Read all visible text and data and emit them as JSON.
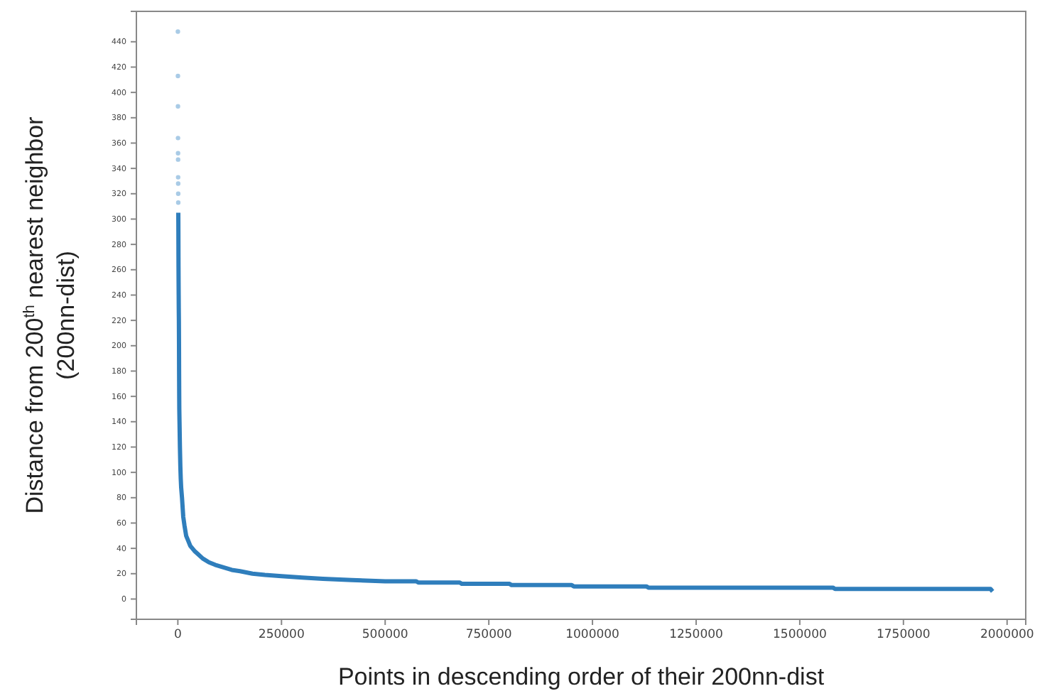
{
  "chart_data": {
    "type": "scatter",
    "xlabel": "Points in descending order of their 200nn-dist",
    "ylabel": "Distance from 200$^{th}$ nearest neighbor (200nn-dist)",
    "xlim": [
      -100000,
      2045000
    ],
    "ylim": [
      -16,
      464
    ],
    "xticks": [
      0,
      250000,
      500000,
      750000,
      1000000,
      1250000,
      1500000,
      1750000,
      2000000
    ],
    "yticks": [
      0,
      20,
      40,
      60,
      80,
      100,
      120,
      140,
      160,
      180,
      200,
      220,
      240,
      260,
      280,
      300,
      320,
      340,
      360,
      380,
      400,
      420,
      440
    ],
    "grid": false,
    "marker": "circle",
    "series": [
      {
        "color": "#a9cbe6",
        "x": [
          100,
          200,
          300,
          400,
          500,
          600,
          700,
          800,
          900,
          1000
        ],
        "values": [
          448,
          413,
          389,
          364,
          352,
          347,
          333,
          328,
          320,
          313
        ]
      },
      {
        "type": "line",
        "color": "#2f7ebc",
        "marker": "none",
        "x": [
          1100,
          1200,
          1300,
          1400,
          1500,
          1600,
          1800,
          2000,
          2200,
          2500,
          2800,
          3000,
          3300,
          3500,
          4000,
          5000,
          6000,
          7000,
          8000,
          10000,
          13000,
          16000,
          20000,
          25000,
          30000,
          40000,
          50000,
          60000,
          75000,
          90000,
          110000,
          130000,
          150000,
          180000,
          210000,
          250000,
          300000,
          350000,
          420000,
          500000,
          575000,
          580000,
          680000,
          685000,
          800000,
          805000,
          950000,
          955000,
          1130000,
          1135000,
          1580000,
          1585000,
          1700000,
          1800000,
          1900000,
          1960000,
          1965000
        ],
        "values": [
          305,
          298,
          290,
          280,
          270,
          262,
          250,
          240,
          230,
          220,
          200,
          180,
          160,
          150,
          140,
          120,
          105,
          95,
          88,
          80,
          65,
          58,
          50,
          46,
          42,
          38,
          35,
          32,
          29,
          27,
          25,
          23,
          22,
          20,
          19,
          18,
          17,
          16,
          15,
          14,
          14,
          13,
          13,
          12,
          12,
          11,
          11,
          10,
          10,
          9,
          9,
          8,
          8,
          8,
          8,
          8,
          6
        ]
      }
    ]
  }
}
